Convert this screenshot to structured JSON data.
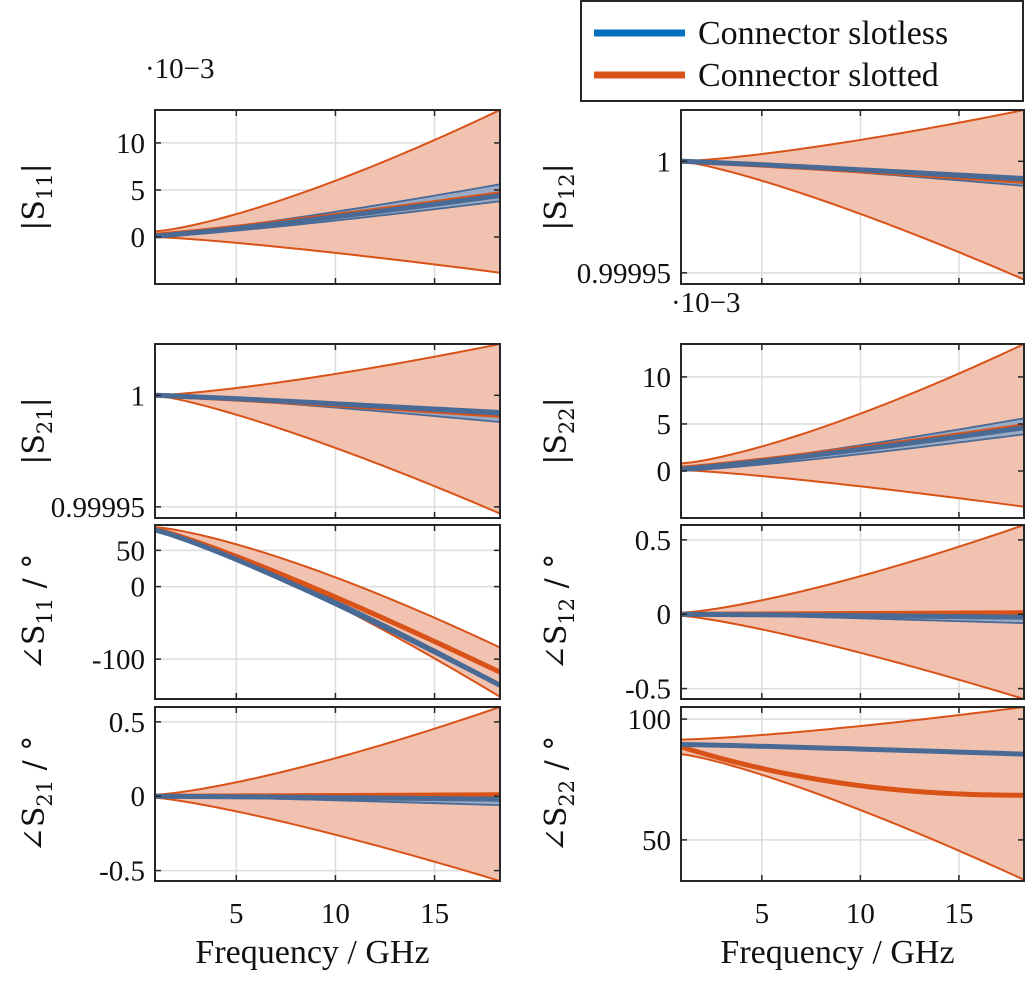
{
  "legend": {
    "position": "top-right",
    "entries": [
      {
        "label": "Connector slotless",
        "color": "#0072BD"
      },
      {
        "label": "Connector slotted",
        "color": "#D95319"
      }
    ]
  },
  "colors": {
    "slotless_line": "#4a6a96",
    "slotless_band": "#9aaac4",
    "slotted_line": "#D95319",
    "slotted_band": "#f2c2b0",
    "axis": "#262626",
    "grid": "#dcdcdc"
  },
  "chart_data": [
    {
      "type": "area",
      "id": "s11mag",
      "ylabel": "|S11|",
      "ylabel_main": "|S",
      "ylabel_sub": "11",
      "ylabel_tail": "|",
      "exponent_label": "·10−3",
      "xlim": [
        0.9,
        18.3
      ],
      "ylim": [
        -5,
        13.5
      ],
      "xticks": [
        5,
        10,
        15
      ],
      "yticks": [
        0,
        5,
        10
      ],
      "ytick_labels": [
        "0",
        "5",
        "10"
      ],
      "x": [
        0.9,
        18.3
      ],
      "series": [
        {
          "name": "Connector slotless",
          "mean": [
            0.1,
            4.4
          ],
          "lower": [
            0.0,
            3.8
          ],
          "upper": [
            0.2,
            5.6
          ]
        },
        {
          "name": "Connector slotted",
          "mean": [
            0.2,
            4.6
          ],
          "lower": [
            0.0,
            -3.8
          ],
          "upper": [
            0.6,
            13.5
          ]
        }
      ]
    },
    {
      "type": "area",
      "id": "s12mag",
      "ylabel": "|S12|",
      "ylabel_main": "|S",
      "ylabel_sub": "12",
      "ylabel_tail": "|",
      "xlim": [
        0.9,
        18.3
      ],
      "ylim": [
        0.999945,
        1.000023
      ],
      "yticks": [
        0.99995,
        1.0
      ],
      "ytick_labels": [
        "0.99995",
        "1"
      ],
      "x": [
        0.9,
        18.3
      ],
      "series": [
        {
          "name": "Connector slotless",
          "mean": [
            1.0,
            0.999992
          ],
          "lower": [
            1.0,
            0.999989
          ],
          "upper": [
            1.0,
            0.999993
          ]
        },
        {
          "name": "Connector slotted",
          "mean": [
            1.0,
            0.999991
          ],
          "lower": [
            1.0,
            0.999947
          ],
          "upper": [
            1.0,
            1.000023
          ]
        }
      ]
    },
    {
      "type": "area",
      "id": "s21mag",
      "ylabel": "|S21|",
      "ylabel_main": "|S",
      "ylabel_sub": "21",
      "ylabel_tail": "|",
      "xlim": [
        0.9,
        18.3
      ],
      "ylim": [
        0.999945,
        1.000023
      ],
      "yticks": [
        0.99995,
        1.0
      ],
      "ytick_labels": [
        "0.99995",
        "1"
      ],
      "x": [
        0.9,
        18.3
      ],
      "series": [
        {
          "name": "Connector slotless",
          "mean": [
            1.0,
            0.999992
          ],
          "lower": [
            1.0,
            0.999988
          ],
          "upper": [
            1.0,
            0.999993
          ]
        },
        {
          "name": "Connector slotted",
          "mean": [
            1.0,
            0.999991
          ],
          "lower": [
            1.0,
            0.999947
          ],
          "upper": [
            1.0,
            1.000023
          ]
        }
      ]
    },
    {
      "type": "area",
      "id": "s22mag",
      "ylabel": "|S22|",
      "ylabel_main": "|S",
      "ylabel_sub": "22",
      "ylabel_tail": "|",
      "exponent_label": "·10−3",
      "xlim": [
        0.9,
        18.3
      ],
      "ylim": [
        -5,
        13.5
      ],
      "yticks": [
        0,
        5,
        10
      ],
      "ytick_labels": [
        "0",
        "5",
        "10"
      ],
      "x": [
        0.9,
        18.3
      ],
      "series": [
        {
          "name": "Connector slotless",
          "mean": [
            0.2,
            4.6
          ],
          "lower": [
            0.0,
            3.9
          ],
          "upper": [
            0.3,
            5.6
          ]
        },
        {
          "name": "Connector slotted",
          "mean": [
            0.3,
            4.8
          ],
          "lower": [
            0.1,
            -3.8
          ],
          "upper": [
            0.8,
            13.5
          ]
        }
      ]
    },
    {
      "type": "area",
      "id": "s11ph",
      "ylabel": "∠S11 / °",
      "ylabel_main": "∠S",
      "ylabel_sub": "11",
      "ylabel_tail": " / °",
      "xlim": [
        0.9,
        18.3
      ],
      "ylim": [
        -155,
        85
      ],
      "yticks": [
        -100,
        0,
        50
      ],
      "ytick_labels": [
        "-100",
        "0",
        "50"
      ],
      "x": [
        0.9,
        18.3
      ],
      "series": [
        {
          "name": "Connector slotless",
          "mean": [
            78,
            -136
          ],
          "lower": [
            78,
            -138
          ],
          "upper": [
            78,
            -134
          ]
        },
        {
          "name": "Connector slotted",
          "mean": [
            79,
            -118
          ],
          "lower": [
            77,
            -152
          ],
          "upper": [
            82,
            -84
          ]
        }
      ]
    },
    {
      "type": "area",
      "id": "s12ph",
      "ylabel": "∠S12 / °",
      "ylabel_main": "∠S",
      "ylabel_sub": "12",
      "ylabel_tail": " / °",
      "xlim": [
        0.9,
        18.3
      ],
      "ylim": [
        -0.57,
        0.6
      ],
      "yticks": [
        -0.5,
        0,
        0.5
      ],
      "ytick_labels": [
        "-0.5",
        "0",
        "0.5"
      ],
      "x": [
        0.9,
        18.3
      ],
      "series": [
        {
          "name": "Connector slotless",
          "mean": [
            0.0,
            -0.02
          ],
          "lower": [
            0.0,
            -0.06
          ],
          "upper": [
            0.0,
            0.02
          ]
        },
        {
          "name": "Connector slotted",
          "mean": [
            0.0,
            0.01
          ],
          "lower": [
            -0.01,
            -0.57
          ],
          "upper": [
            0.01,
            0.6
          ]
        }
      ]
    },
    {
      "type": "area",
      "id": "s21ph",
      "ylabel": "∠S21 / °",
      "ylabel_main": "∠S",
      "ylabel_sub": "21",
      "ylabel_tail": " / °",
      "xlim": [
        0.9,
        18.3
      ],
      "ylim": [
        -0.57,
        0.6
      ],
      "yticks": [
        -0.5,
        0,
        0.5
      ],
      "ytick_labels": [
        "-0.5",
        "0",
        "0.5"
      ],
      "x": [
        0.9,
        18.3
      ],
      "series": [
        {
          "name": "Connector slotless",
          "mean": [
            0.0,
            -0.02
          ],
          "lower": [
            0.0,
            -0.06
          ],
          "upper": [
            0.0,
            0.02
          ]
        },
        {
          "name": "Connector slotted",
          "mean": [
            0.0,
            0.01
          ],
          "lower": [
            -0.01,
            -0.57
          ],
          "upper": [
            0.01,
            0.6
          ]
        }
      ]
    },
    {
      "type": "area",
      "id": "s22ph",
      "ylabel": "∠S22 / °",
      "ylabel_main": "∠S",
      "ylabel_sub": "22",
      "ylabel_tail": " / °",
      "xlim": [
        0.9,
        18.3
      ],
      "ylim": [
        33,
        105
      ],
      "yticks": [
        50,
        100
      ],
      "ytick_labels": [
        "50",
        "100"
      ],
      "x": [
        0.9,
        18.3
      ],
      "series": [
        {
          "name": "Connector slotless",
          "mean": [
            89.5,
            85.5
          ],
          "lower": [
            89.5,
            85.0
          ],
          "upper": [
            89.5,
            86.0
          ]
        },
        {
          "name": "Connector slotted",
          "mean": [
            88.5,
            68.5
          ],
          "lower": [
            85.5,
            33.5
          ],
          "upper": [
            91.5,
            105
          ]
        }
      ]
    }
  ],
  "xlabel": "Frequency / GHz",
  "xtick_labels": [
    "5",
    "10",
    "15"
  ]
}
